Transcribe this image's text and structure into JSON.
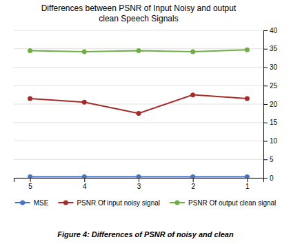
{
  "chart_data": {
    "type": "line",
    "title": "Differences between PSNR of Input Noisy and output\nclean Speech Signals",
    "caption": "Figure 4: Differences of PSNR of noisy and clean",
    "x": [
      5,
      4,
      3,
      2,
      1
    ],
    "xlim": [
      5.3,
      0.7
    ],
    "xticks": [
      5,
      4,
      3,
      2,
      1
    ],
    "ylim": [
      0,
      40
    ],
    "yticks": [
      0,
      5,
      10,
      15,
      20,
      25,
      30,
      35,
      40
    ],
    "grid": true,
    "legend": "bottom",
    "marker": "circle",
    "series": [
      {
        "name": "MSE",
        "color": "#4472C4",
        "values": [
          0.3,
          0.3,
          0.3,
          0.3,
          0.3
        ]
      },
      {
        "name": "PSNR Of input noisy signal",
        "color": "#A52A2A",
        "values": [
          21.5,
          20.5,
          17.5,
          22.5,
          21.5
        ]
      },
      {
        "name": "PSNR Of output clean signal",
        "color": "#70AD47",
        "values": [
          34.5,
          34.2,
          34.5,
          34.2,
          34.7
        ]
      }
    ]
  }
}
